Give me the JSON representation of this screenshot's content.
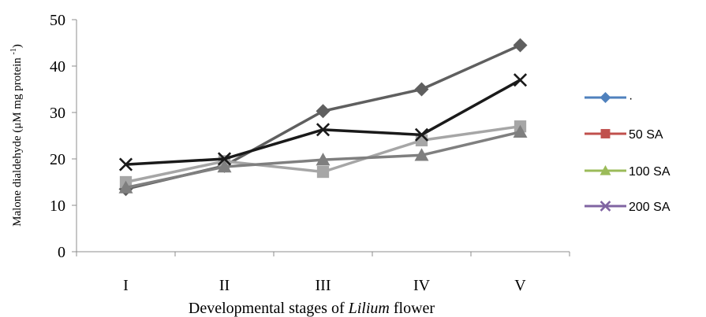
{
  "chart_data": {
    "type": "line",
    "categories": [
      "I",
      "II",
      "III",
      "IV",
      "V"
    ],
    "ylim": [
      0,
      50
    ],
    "yticks": [
      0,
      10,
      20,
      30,
      40,
      50
    ],
    "grid": false,
    "legend_position": "right",
    "xlabel_parts": [
      "Developmental stages of ",
      "Lilium",
      " flower"
    ],
    "ylabel_parts": [
      "Malone dialdehyde (μM mg protein ",
      "-1",
      ")"
    ],
    "series": [
      {
        "name": "·",
        "values": [
          13.5,
          18.5,
          30.3,
          35.0,
          44.5
        ],
        "plot_color": "#5f5f5f",
        "plot_marker": "diamond",
        "legend_color": "#4f81bd",
        "legend_marker": "diamond"
      },
      {
        "name": "50 SA",
        "values": [
          15.0,
          19.5,
          17.2,
          24.0,
          27.0
        ],
        "plot_color": "#a6a6a6",
        "plot_marker": "square",
        "legend_color": "#c0504d",
        "legend_marker": "square"
      },
      {
        "name": "100 SA",
        "values": [
          13.8,
          18.3,
          19.8,
          20.8,
          25.8
        ],
        "plot_color": "#7f7f7f",
        "plot_marker": "triangle",
        "legend_color": "#9bbb59",
        "legend_marker": "triangle"
      },
      {
        "name": "200 SA",
        "values": [
          18.8,
          20.0,
          26.3,
          25.2,
          37.0
        ],
        "plot_color": "#1a1a1a",
        "plot_marker": "x",
        "legend_color": "#8064a2",
        "legend_marker": "x"
      }
    ]
  }
}
